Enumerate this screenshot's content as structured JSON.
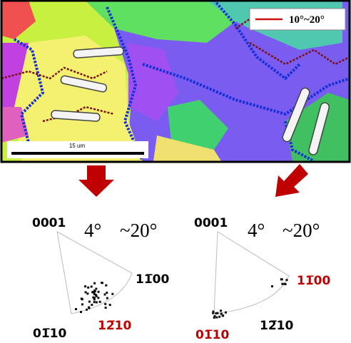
{
  "map": {
    "legend_label": "10°~20°",
    "scale_label": "15 um"
  },
  "panels": [
    {
      "top_label": "0001",
      "angle_small": "4°",
      "angle_large": "~20°",
      "right_label": "11̅00",
      "bottom_right_label": "12̅10",
      "bottom_left_label": "01̅10"
    },
    {
      "top_label": "0001",
      "angle_small": "4°",
      "angle_large": "~20°",
      "right_label": "11̅00",
      "bottom_right_label": "12̅10",
      "bottom_left_label": "01̅10"
    }
  ]
}
